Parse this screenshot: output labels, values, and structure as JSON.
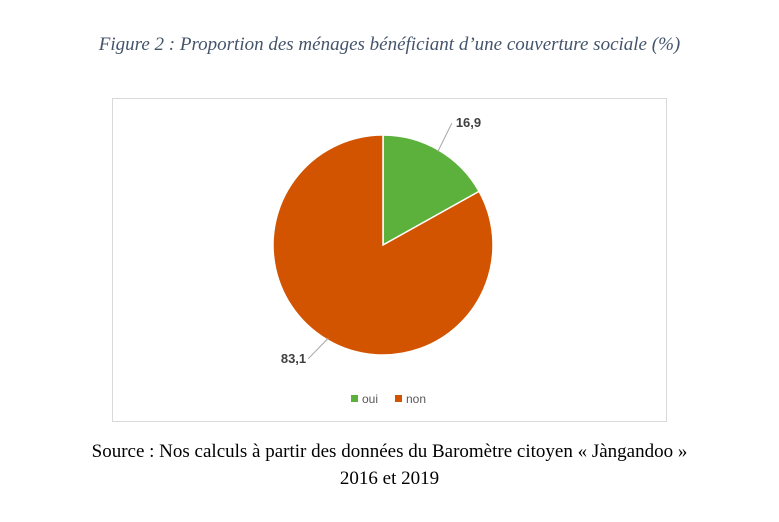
{
  "figure": {
    "caption": "Figure 2 : Proportion des ménages bénéficiant d’une couverture sociale (%)"
  },
  "source": {
    "line1": "Source : Nos calculs à partir des données du Baromètre citoyen « Jàngandoo »",
    "line2": "2016 et 2019"
  },
  "chart_data": {
    "type": "pie",
    "categories": [
      "oui",
      "non"
    ],
    "values": [
      16.9,
      83.1
    ],
    "value_labels": [
      "16,9",
      "83,1"
    ],
    "colors": [
      "#5BB13B",
      "#D35400"
    ],
    "legend": {
      "position": "bottom",
      "entries": [
        "oui",
        "non"
      ]
    },
    "start_angle_deg": 0,
    "direction": "clockwise"
  }
}
